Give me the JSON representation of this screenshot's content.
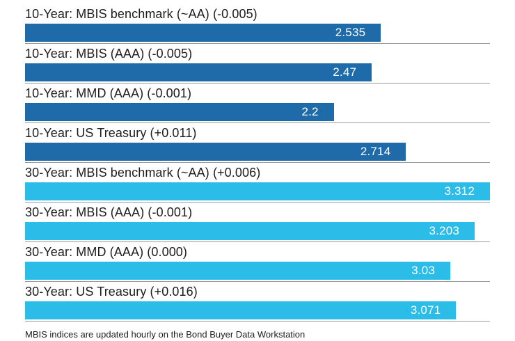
{
  "chart_data": {
    "type": "bar",
    "orientation": "horizontal",
    "title": "",
    "xlabel": "",
    "ylabel": "",
    "xlim": [
      0,
      3.312
    ],
    "grid": false,
    "legend": "none",
    "series_colors": {
      "ten_year": "#1f6ba9",
      "thirty_year": "#2cbce8"
    },
    "baseline_color": "#9b9b9b",
    "categories": [
      "10-Year: MBIS benchmark (~AA) (-0.005)",
      "10-Year: MBIS (AAA) (-0.005)",
      "10-Year: MMD (AAA) (-0.001)",
      "10-Year: US Treasury (+0.011)",
      "30-Year: MBIS benchmark (~AA) (+0.006)",
      "30-Year: MBIS (AAA) (-0.001)",
      "30-Year: MMD (AAA) (0.000)",
      "30-Year: US Treasury (+0.016)"
    ],
    "values": [
      2.535,
      2.47,
      2.2,
      2.714,
      3.312,
      3.203,
      3.03,
      3.071
    ],
    "rows": [
      {
        "label": "10-Year: MBIS benchmark (~AA) (-0.005)",
        "value": 2.535,
        "display": "2.535",
        "color": "#1f6ba9"
      },
      {
        "label": "10-Year: MBIS (AAA) (-0.005)",
        "value": 2.47,
        "display": "2.47",
        "color": "#1f6ba9"
      },
      {
        "label": "10-Year: MMD (AAA) (-0.001)",
        "value": 2.2,
        "display": "2.2",
        "color": "#1f6ba9"
      },
      {
        "label": "10-Year: US Treasury (+0.011)",
        "value": 2.714,
        "display": "2.714",
        "color": "#1f6ba9"
      },
      {
        "label": "30-Year: MBIS benchmark (~AA) (+0.006)",
        "value": 3.312,
        "display": "3.312",
        "color": "#2cbce8"
      },
      {
        "label": "30-Year: MBIS (AAA) (-0.001)",
        "value": 3.203,
        "display": "3.203",
        "color": "#2cbce8"
      },
      {
        "label": "30-Year: MMD (AAA) (0.000)",
        "value": 3.03,
        "display": "3.03",
        "color": "#2cbce8"
      },
      {
        "label": "30-Year: US Treasury (+0.016)",
        "value": 3.071,
        "display": "3.071",
        "color": "#2cbce8"
      }
    ],
    "footnote": "MBIS indices are updated hourly on the Bond Buyer Data Workstation"
  }
}
